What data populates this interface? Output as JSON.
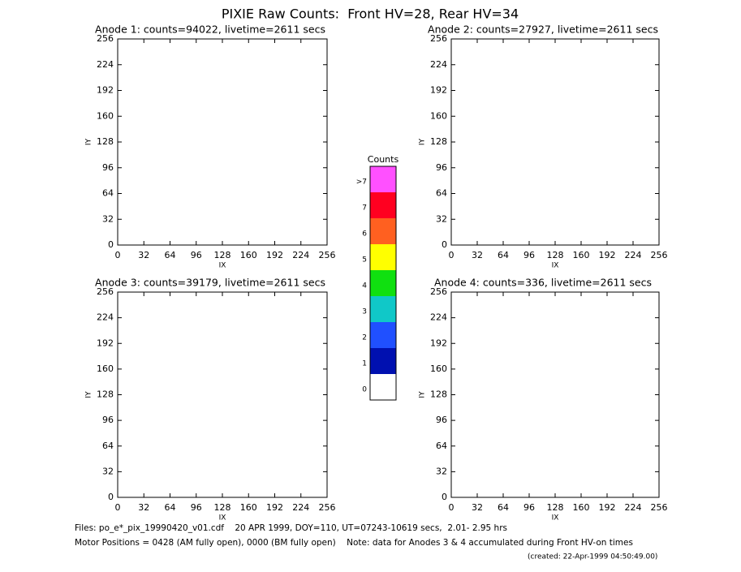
{
  "title": "PIXIE Raw Counts:  Front HV=28, Rear HV=34",
  "chart_data": [
    {
      "type": "heatmap",
      "title": "Anode 1: counts=94022, livetime=2611 secs",
      "xlabel": "IX",
      "ylabel": "IY",
      "xlim": [
        0,
        256
      ],
      "ylim": [
        0,
        256
      ],
      "xticks": [
        0,
        32,
        64,
        96,
        128,
        160,
        192,
        224,
        256
      ],
      "yticks": [
        0,
        32,
        64,
        96,
        128,
        160,
        192,
        224,
        256
      ]
    },
    {
      "type": "heatmap",
      "title": "Anode 2: counts=27927, livetime=2611 secs",
      "xlabel": "IX",
      "ylabel": "IY",
      "xlim": [
        0,
        256
      ],
      "ylim": [
        0,
        256
      ],
      "xticks": [
        0,
        32,
        64,
        96,
        128,
        160,
        192,
        224,
        256
      ],
      "yticks": [
        0,
        32,
        64,
        96,
        128,
        160,
        192,
        224,
        256
      ]
    },
    {
      "type": "heatmap",
      "title": "Anode 3: counts=39179, livetime=2611 secs",
      "xlabel": "IX",
      "ylabel": "IY",
      "xlim": [
        0,
        256
      ],
      "ylim": [
        0,
        256
      ],
      "xticks": [
        0,
        32,
        64,
        96,
        128,
        160,
        192,
        224,
        256
      ],
      "yticks": [
        0,
        32,
        64,
        96,
        128,
        160,
        192,
        224,
        256
      ]
    },
    {
      "type": "heatmap",
      "title": "Anode 4: counts=336, livetime=2611 secs",
      "xlabel": "IX",
      "ylabel": "IY",
      "xlim": [
        0,
        256
      ],
      "ylim": [
        0,
        256
      ],
      "xticks": [
        0,
        32,
        64,
        96,
        128,
        160,
        192,
        224,
        256
      ],
      "yticks": [
        0,
        32,
        64,
        96,
        128,
        160,
        192,
        224,
        256
      ]
    }
  ],
  "colorbar": {
    "title": "Counts",
    "levels": [
      {
        "label": "0",
        "color": "#ffffff"
      },
      {
        "label": "1",
        "color": "#0010b0"
      },
      {
        "label": "2",
        "color": "#2050ff"
      },
      {
        "label": "3",
        "color": "#10c8c8"
      },
      {
        "label": "4",
        "color": "#10e010"
      },
      {
        "label": "5",
        "color": "#ffff00"
      },
      {
        "label": "6",
        "color": "#ff6020"
      },
      {
        "label": "7",
        "color": "#ff0020"
      },
      {
        "label": ">7",
        "color": "#ff50ff"
      }
    ]
  },
  "footer": {
    "files": "Files: po_e*_pix_19990420_v01.cdf    20 APR 1999, DOY=110, UT=07243-10619 secs,  2.01- 2.95 hrs",
    "motor": "Motor Positions = 0428 (AM fully open), 0000 (BM fully open)    Note: data for Anodes 3 & 4 accumulated during Front HV-on times",
    "created": "(created: 22-Apr-1999 04:50:49.00)"
  }
}
